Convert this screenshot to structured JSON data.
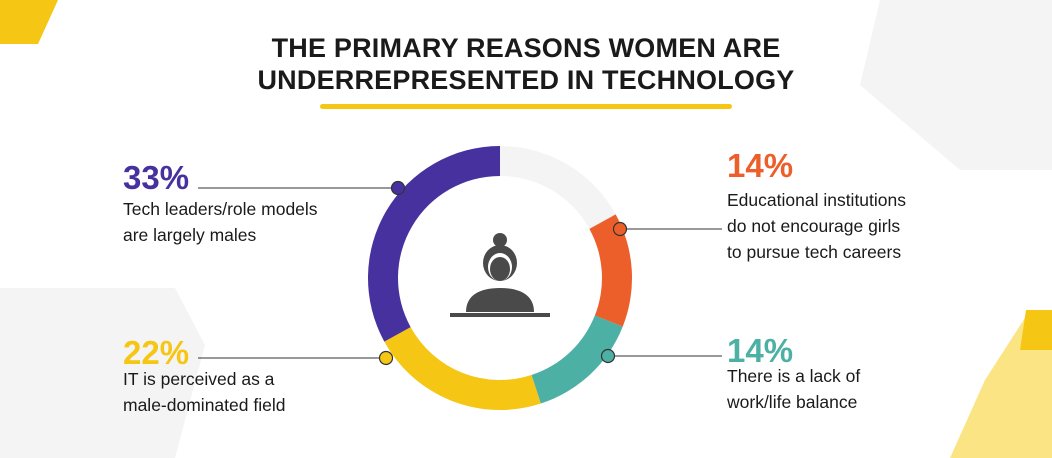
{
  "title": {
    "line1": "THE PRIMARY REASONS WOMEN ARE",
    "line2": "UNDERREPRESENTED IN TECHNOLOGY"
  },
  "colors": {
    "underline": "#f6c614",
    "track": "#f4f4f4",
    "shape_gray": "#f3f3f3",
    "shape_yellow": "#f6c614",
    "shape_light_yellow": "#fbe484",
    "connector": "#333333",
    "icon": "#4a4a4a"
  },
  "icon": "woman-at-desk-icon",
  "chart_data": {
    "type": "pie",
    "donut": true,
    "title": "THE PRIMARY REASONS WOMEN ARE UNDERREPRESENTED IN TECHNOLOGY",
    "slices": [
      {
        "value": 33,
        "label": "33%",
        "color": "#46319f",
        "lines": [
          "Tech leaders/role models",
          "are largely males"
        ]
      },
      {
        "value": 14,
        "label": "14%",
        "color": "#ec5f2b",
        "lines": [
          "Educational institutions",
          "do not encourage girls",
          "to pursue tech careers"
        ]
      },
      {
        "value": 14,
        "label": "14%",
        "color": "#4cb0a4",
        "lines": [
          "There is a lack of",
          "work/life balance"
        ]
      },
      {
        "value": 22,
        "label": "22%",
        "color": "#f6c614",
        "lines": [
          "IT is perceived as a",
          "male-dominated field"
        ]
      }
    ]
  }
}
